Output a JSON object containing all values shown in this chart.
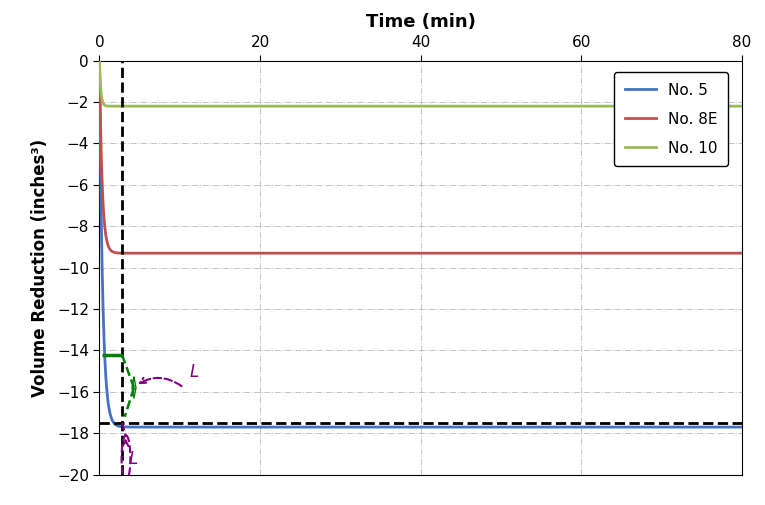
{
  "title": "Time (min)",
  "ylabel": "Volume Reduction (inches³)",
  "xlim": [
    0,
    80
  ],
  "ylim": [
    -20,
    0
  ],
  "xticks": [
    0,
    20,
    40,
    60,
    80
  ],
  "yticks": [
    0,
    -2,
    -4,
    -6,
    -8,
    -10,
    -12,
    -14,
    -16,
    -18,
    -20
  ],
  "curve_no5_color": "#4472C4",
  "curve_no8e_color": "#C0504D",
  "curve_no10_color": "#9BBB59",
  "curve_no5_asymptote": -17.7,
  "curve_no8e_asymptote": -9.3,
  "curve_no10_asymptote": -2.2,
  "curve_no5_rate": 2.5,
  "curve_no8e_rate": 3.0,
  "curve_no10_rate": 6.0,
  "horiz_dashed_y": -17.5,
  "vert_dashed_x": 2.8,
  "intersection_x": 2.8,
  "intersection_y": -17.5,
  "green_line_y": -14.2,
  "green_line_x_start": 0.3,
  "green_line_x_end": 2.8,
  "legend_labels": [
    "No. 5",
    "No. 8E",
    "No. 10"
  ],
  "background_color": "#ffffff",
  "grid_color": "#aaaaaa",
  "title_fontsize": 13,
  "label_fontsize": 12,
  "tick_fontsize": 11
}
